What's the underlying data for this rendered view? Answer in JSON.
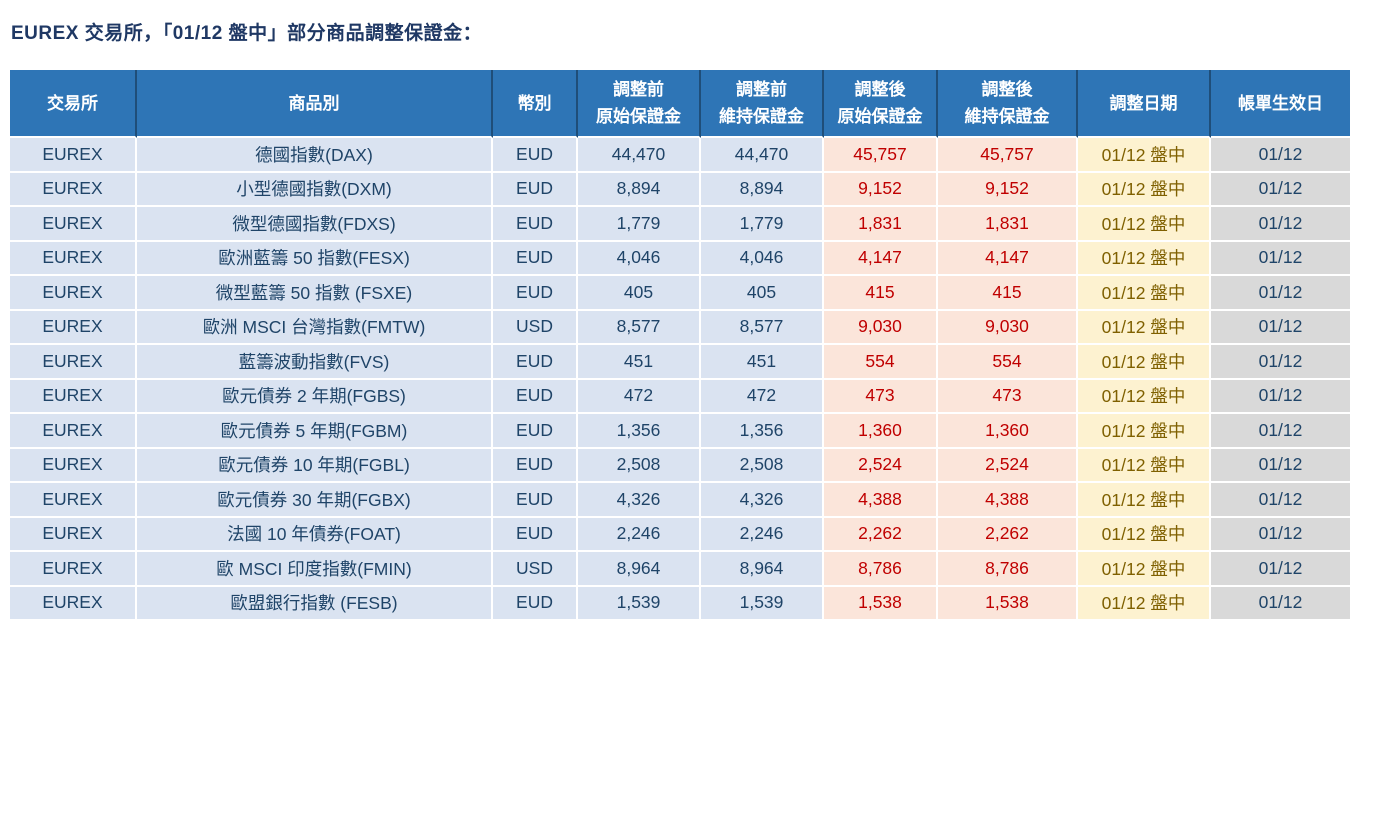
{
  "title": "EUREX 交易所，「01/12 盤中」部分商品調整保證金：",
  "colors": {
    "header_bg": "#2E75B6",
    "header_text": "#FFFFFF",
    "header_divider": "#1F4E79",
    "cell_bg_blue": "#DAE3F1",
    "cell_bg_pink": "#FBE5DA",
    "cell_bg_yellow": "#FDF2D0",
    "cell_bg_gray": "#D9D9D9",
    "text_navy": "#1F4468",
    "text_red": "#C00000",
    "text_olive": "#7F6000",
    "title_text": "#1F3864"
  },
  "table": {
    "headers": [
      {
        "line1": "交易所"
      },
      {
        "line1": "商品別"
      },
      {
        "line1": "幣別"
      },
      {
        "line1": "調整前",
        "line2": "原始保證金"
      },
      {
        "line1": "調整前",
        "line2": "維持保證金"
      },
      {
        "line1": "調整後",
        "line2": "原始保證金"
      },
      {
        "line1": "調整後",
        "line2": "維持保證金"
      },
      {
        "line1": "調整日期"
      },
      {
        "line1": "帳單生效日"
      }
    ],
    "rows": [
      [
        "EUREX",
        "德國指數(DAX)",
        "EUD",
        "44,470",
        "44,470",
        "45,757",
        "45,757",
        "01/12 盤中",
        "01/12"
      ],
      [
        "EUREX",
        "小型德國指數(DXM)",
        "EUD",
        "8,894",
        "8,894",
        "9,152",
        "9,152",
        "01/12 盤中",
        "01/12"
      ],
      [
        "EUREX",
        "微型德國指數(FDXS)",
        "EUD",
        "1,779",
        "1,779",
        "1,831",
        "1,831",
        "01/12 盤中",
        "01/12"
      ],
      [
        "EUREX",
        "歐洲藍籌 50 指數(FESX)",
        "EUD",
        "4,046",
        "4,046",
        "4,147",
        "4,147",
        "01/12 盤中",
        "01/12"
      ],
      [
        "EUREX",
        "微型藍籌 50 指數 (FSXE)",
        "EUD",
        "405",
        "405",
        "415",
        "415",
        "01/12 盤中",
        "01/12"
      ],
      [
        "EUREX",
        "歐洲 MSCI 台灣指數(FMTW)",
        "USD",
        "8,577",
        "8,577",
        "9,030",
        "9,030",
        "01/12 盤中",
        "01/12"
      ],
      [
        "EUREX",
        "藍籌波動指數(FVS)",
        "EUD",
        "451",
        "451",
        "554",
        "554",
        "01/12 盤中",
        "01/12"
      ],
      [
        "EUREX",
        "歐元債券 2 年期(FGBS)",
        "EUD",
        "472",
        "472",
        "473",
        "473",
        "01/12 盤中",
        "01/12"
      ],
      [
        "EUREX",
        "歐元債券 5 年期(FGBM)",
        "EUD",
        "1,356",
        "1,356",
        "1,360",
        "1,360",
        "01/12 盤中",
        "01/12"
      ],
      [
        "EUREX",
        "歐元債券 10 年期(FGBL)",
        "EUD",
        "2,508",
        "2,508",
        "2,524",
        "2,524",
        "01/12 盤中",
        "01/12"
      ],
      [
        "EUREX",
        "歐元債券 30 年期(FGBX)",
        "EUD",
        "4,326",
        "4,326",
        "4,388",
        "4,388",
        "01/12 盤中",
        "01/12"
      ],
      [
        "EUREX",
        "法國 10 年債券(FOAT)",
        "EUD",
        "2,246",
        "2,246",
        "2,262",
        "2,262",
        "01/12 盤中",
        "01/12"
      ],
      [
        "EUREX",
        "歐 MSCI 印度指數(FMIN)",
        "USD",
        "8,964",
        "8,964",
        "8,786",
        "8,786",
        "01/12 盤中",
        "01/12"
      ],
      [
        "EUREX",
        "歐盟銀行指數 (FESB)",
        "EUD",
        "1,539",
        "1,539",
        "1,538",
        "1,538",
        "01/12 盤中",
        "01/12"
      ]
    ]
  }
}
